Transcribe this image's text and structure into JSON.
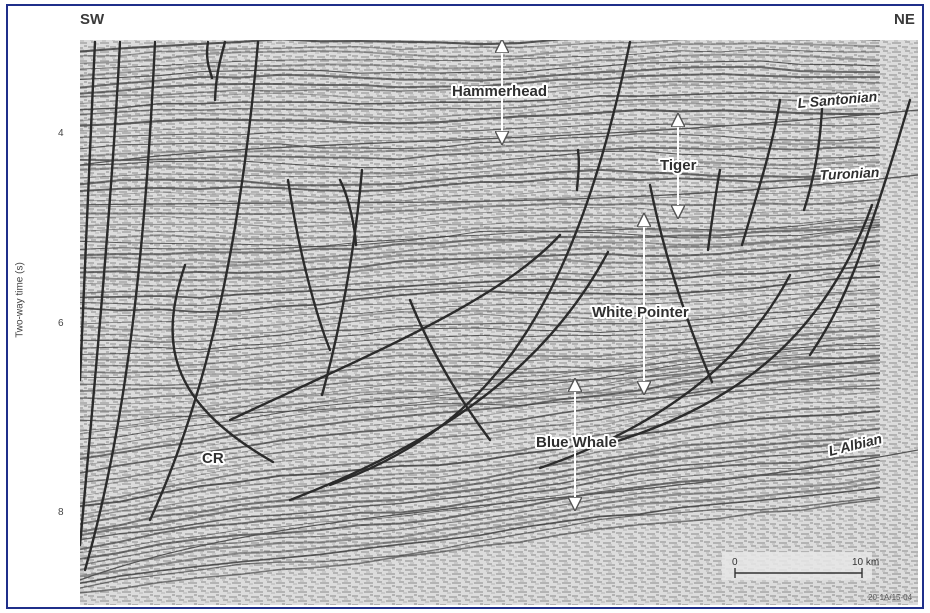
{
  "orientation": {
    "left": "SW",
    "right": "NE"
  },
  "axis": {
    "y_label": "Two-way time (s)",
    "y_ticks": [
      "4",
      "6",
      "8"
    ]
  },
  "structures": [
    {
      "name": "Hammerhead"
    },
    {
      "name": "Tiger"
    },
    {
      "name": "White Pointer"
    },
    {
      "name": "Blue Whale"
    },
    {
      "name": "CR"
    }
  ],
  "horizons": [
    {
      "name": "L Santonian"
    },
    {
      "name": "Turonian"
    },
    {
      "name": "L Albian"
    }
  ],
  "scale_bar": {
    "start": "0",
    "end": "10 km"
  },
  "credit": "20-1A/15-04"
}
